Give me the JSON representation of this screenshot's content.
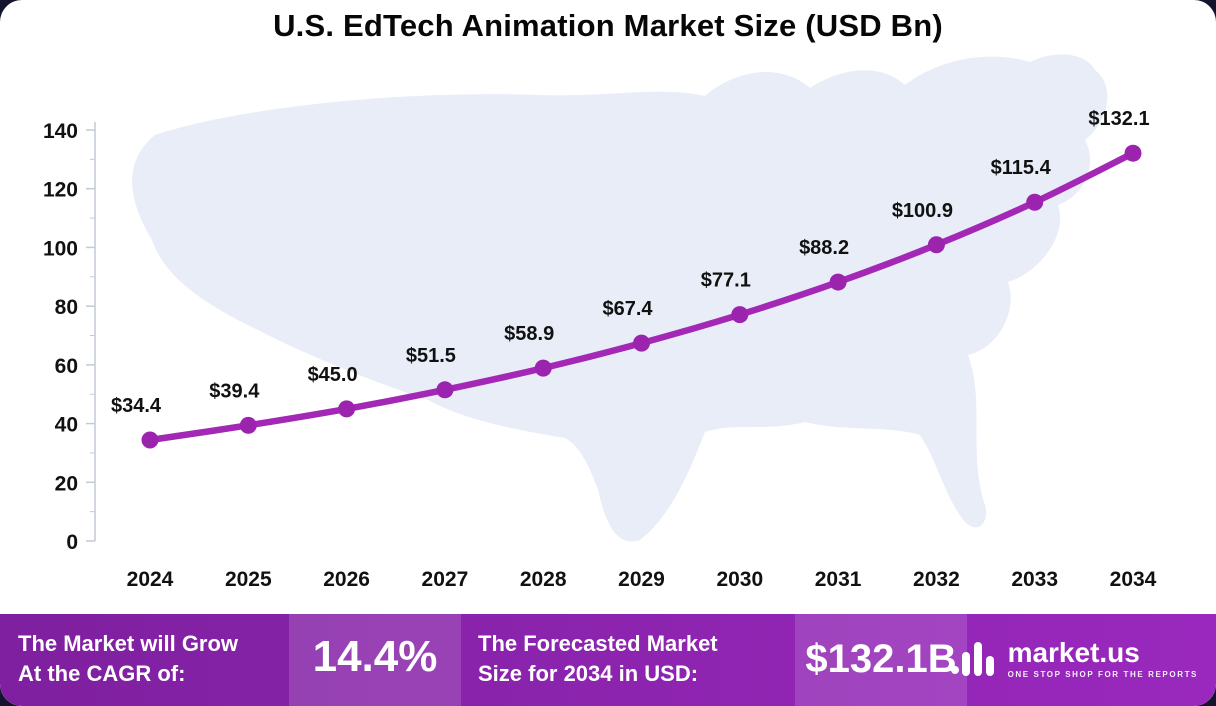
{
  "title": "U.S. EdTech Animation Market Size (USD Bn)",
  "chart_data": {
    "type": "line",
    "title": "U.S. EdTech Animation Market Size (USD Bn)",
    "x": [
      "2024",
      "2025",
      "2026",
      "2027",
      "2028",
      "2029",
      "2030",
      "2031",
      "2032",
      "2033",
      "2034"
    ],
    "values": [
      34.4,
      39.4,
      45.0,
      51.5,
      58.9,
      67.4,
      77.1,
      88.2,
      100.9,
      115.4,
      132.1
    ],
    "point_labels": [
      "$34.4",
      "$39.4",
      "$45.0",
      "$51.5",
      "$58.9",
      "$67.4",
      "$77.1",
      "$88.2",
      "$100.9",
      "$115.4",
      "$132.1"
    ],
    "ylim": [
      0,
      140
    ],
    "yticks": [
      0,
      20,
      40,
      60,
      80,
      100,
      120,
      140
    ],
    "grid": false,
    "legend": false,
    "xlabel": "",
    "ylabel": ""
  },
  "banner": {
    "cagr_label_line1": "The Market will Grow",
    "cagr_label_line2": "At the CAGR of:",
    "cagr_value": "14.4%",
    "forecast_label_line1": "The Forecasted Market",
    "forecast_label_line2": "Size for 2034 in USD:",
    "forecast_value": "$132.1B",
    "brand": "market.us",
    "tagline": "ONE STOP SHOP FOR THE REPORTS"
  },
  "colors": {
    "line": "#A228B5",
    "marker": "#9C23AE",
    "map_fill": "#E9EDF8",
    "banner_start": "#7E209F",
    "banner_end": "#9A28BE",
    "text": "#111111",
    "axis": "#C4C9D6",
    "page_background": "#14142F"
  }
}
